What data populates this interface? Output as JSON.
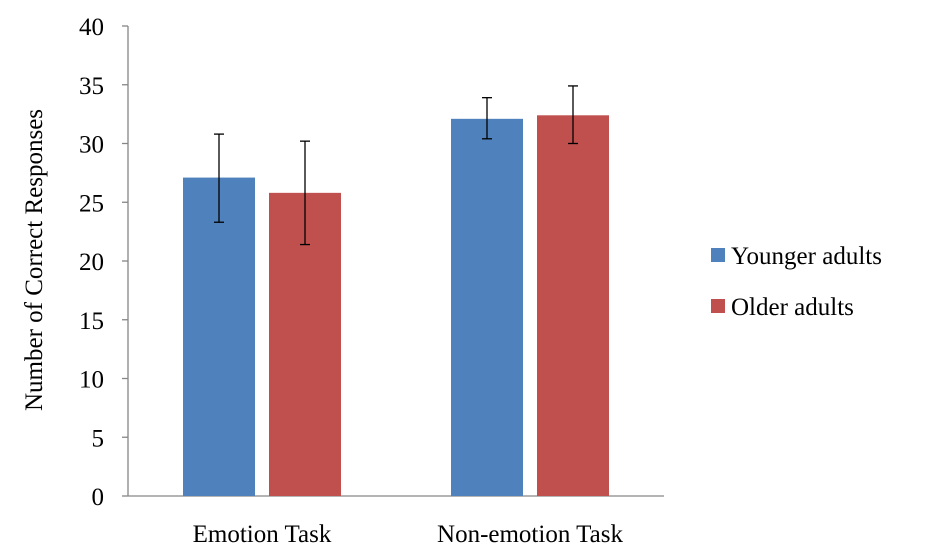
{
  "chart_data": {
    "type": "bar",
    "title": "",
    "xlabel": "",
    "ylabel": "Number of Correct Responses",
    "ylim": [
      0,
      40
    ],
    "yticks": [
      0,
      5,
      10,
      15,
      20,
      25,
      30,
      35,
      40
    ],
    "grid": false,
    "legend_position": "right",
    "categories": [
      "Emotion Task",
      "Non-emotion Task"
    ],
    "series": [
      {
        "name": "Younger adults",
        "color": "#4F81BD",
        "values": [
          27.1,
          32.1
        ],
        "error_low": [
          23.3,
          30.4
        ],
        "error_high": [
          30.8,
          33.9
        ]
      },
      {
        "name": "Older adults",
        "color": "#C0504D",
        "values": [
          25.8,
          32.4
        ],
        "error_low": [
          21.4,
          30.0
        ],
        "error_high": [
          30.2,
          34.9
        ]
      }
    ]
  }
}
